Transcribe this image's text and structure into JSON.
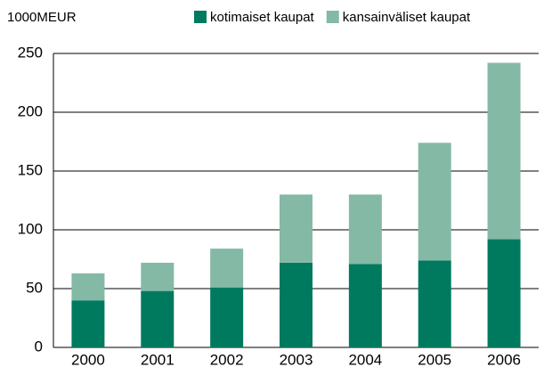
{
  "chart_data": {
    "type": "stacked_bar",
    "unit_label": "1000MEUR",
    "categories": [
      "2000",
      "2001",
      "2002",
      "2003",
      "2004",
      "2005",
      "2006"
    ],
    "series": [
      {
        "name": "kotimaiset kaupat",
        "color": "#007a5e",
        "values": [
          40,
          48,
          51,
          72,
          71,
          74,
          92
        ]
      },
      {
        "name": "kansainväliset kaupat",
        "color": "#84b9a6",
        "values": [
          23,
          24,
          33,
          58,
          59,
          100,
          150
        ]
      }
    ],
    "ylim": [
      0,
      250
    ],
    "yticks": [
      0,
      50,
      100,
      150,
      200,
      250
    ],
    "grid": true,
    "legend": "top-right"
  }
}
